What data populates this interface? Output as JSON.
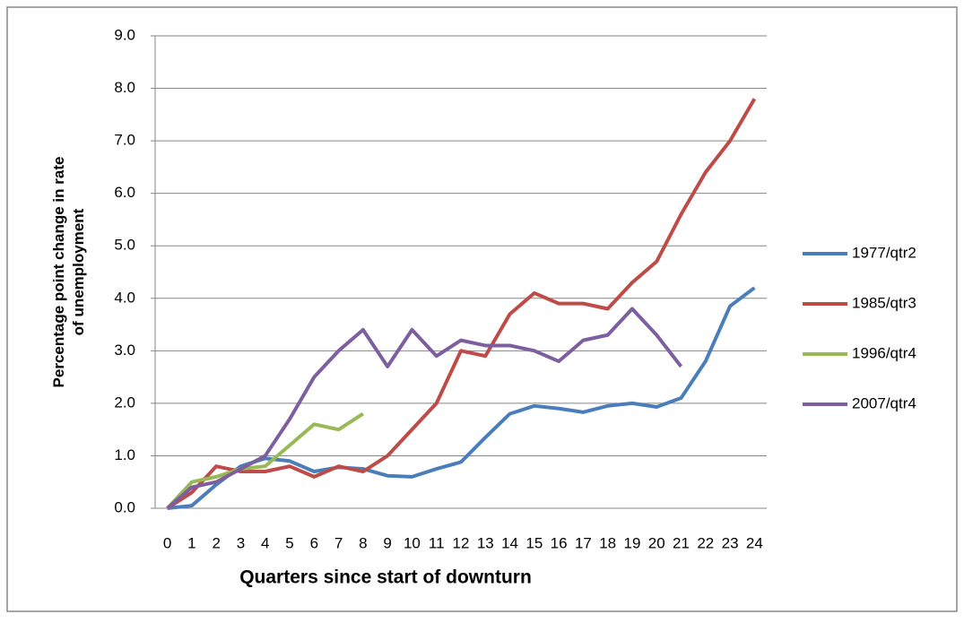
{
  "chart_data": {
    "type": "line",
    "x_label": "Quarters since start of downturn",
    "y_label": "Percentage point change in rate of unemployment",
    "categories": [
      "0",
      "1",
      "2",
      "3",
      "4",
      "5",
      "6",
      "7",
      "8",
      "9",
      "10",
      "11",
      "12",
      "13",
      "14",
      "15",
      "16",
      "17",
      "18",
      "19",
      "20",
      "21",
      "22",
      "23",
      "24"
    ],
    "series": [
      {
        "name": "1977/qtr2",
        "color": "#4a7ebb",
        "values": [
          0,
          0.05,
          0.45,
          0.8,
          0.95,
          0.9,
          0.7,
          0.78,
          0.75,
          0.62,
          0.6,
          0.75,
          0.88,
          1.35,
          1.8,
          1.95,
          1.9,
          1.83,
          1.95,
          2.0,
          1.93,
          2.1,
          2.8,
          3.85,
          4.2
        ]
      },
      {
        "name": "1985/qtr3",
        "color": "#be4b48",
        "values": [
          0,
          0.3,
          0.8,
          0.7,
          0.7,
          0.8,
          0.6,
          0.8,
          0.7,
          1.0,
          1.5,
          2.0,
          3.0,
          2.9,
          3.7,
          4.1,
          3.9,
          3.9,
          3.8,
          4.3,
          4.7,
          5.6,
          6.4,
          7.0,
          7.8
        ]
      },
      {
        "name": "1996/qtr4",
        "color": "#98b954",
        "values": [
          0,
          0.5,
          0.6,
          0.75,
          0.8,
          1.2,
          1.6,
          1.5,
          1.8,
          null,
          null,
          null,
          null,
          null,
          null,
          null,
          null,
          null,
          null,
          null,
          null,
          null,
          null,
          null,
          null
        ]
      },
      {
        "name": "2007/qtr4",
        "color": "#7d5fa0",
        "values": [
          0,
          0.4,
          0.5,
          0.75,
          1.0,
          1.7,
          2.5,
          3.0,
          3.4,
          2.7,
          3.4,
          2.9,
          3.2,
          3.1,
          3.1,
          3.0,
          2.8,
          3.2,
          3.3,
          3.8,
          3.3,
          2.7,
          null,
          null,
          null
        ]
      }
    ],
    "ylim": [
      0,
      9
    ],
    "yticks": [
      {
        "value": 0,
        "label": "0.0"
      },
      {
        "value": 1,
        "label": "1.0"
      },
      {
        "value": 2,
        "label": "2.0"
      },
      {
        "value": 3,
        "label": "3.0"
      },
      {
        "value": 4,
        "label": "4.0"
      },
      {
        "value": 5,
        "label": "5.0"
      },
      {
        "value": 6,
        "label": "6.0"
      },
      {
        "value": 7,
        "label": "7.0"
      },
      {
        "value": 8,
        "label": "8.0"
      },
      {
        "value": 9,
        "label": "9.0"
      }
    ],
    "grid": true,
    "legend": "right"
  }
}
